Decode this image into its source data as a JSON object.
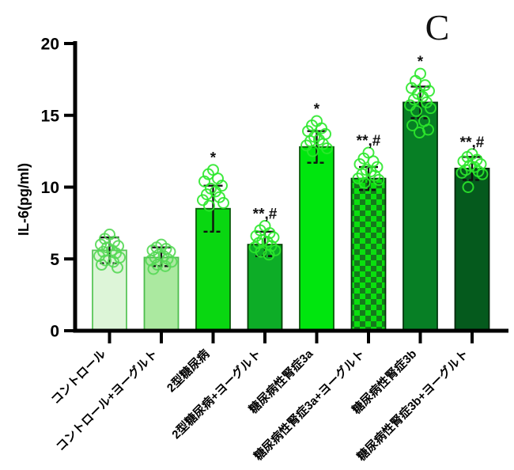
{
  "panel_label": "C",
  "chart_data": {
    "type": "bar",
    "title": "",
    "panel_label": "C",
    "xlabel": "",
    "ylabel": "IL-6(pg/ml)",
    "ylim": [
      0,
      20
    ],
    "yticks": [
      0,
      5,
      10,
      15,
      20
    ],
    "grid": false,
    "legend": "none",
    "categories": [
      "コントロール",
      "コントロール+ヨーグルト",
      "2型糖尿病",
      "2型糖尿病+ヨーグルト",
      "糖尿病性腎症3a",
      "糖尿病性腎症3a+ヨーグルト",
      "糖尿病性腎症3b",
      "糖尿病性腎症3b+ヨーグルト"
    ],
    "values": [
      5.6,
      5.1,
      8.5,
      6.0,
      12.8,
      10.6,
      15.9,
      11.3
    ],
    "error_low": [
      4.7,
      4.5,
      6.9,
      5.2,
      11.7,
      9.8,
      14.8,
      10.5
    ],
    "error_high": [
      6.5,
      5.8,
      10.1,
      6.9,
      13.9,
      11.4,
      17.0,
      12.1
    ],
    "significance": [
      "",
      "",
      "*",
      "**,#",
      "*",
      "**,#",
      "*",
      "**,#"
    ],
    "bar_styles": [
      {
        "fill": "#ddf5d8",
        "border": "#5ac65a",
        "point_color": "#55d855"
      },
      {
        "fill": "#abe9a0",
        "border": "#4dbd4d",
        "point_color": "#55d855"
      },
      {
        "fill": "#09d711",
        "border": "#0a5c0a",
        "point_color": "#2ce82c"
      },
      {
        "fill": "#0dad27",
        "border": "#064006",
        "point_color": "#2ce82c"
      },
      {
        "fill": "#00e60e",
        "border": "#0a5c0a",
        "point_color": "#2ce82c"
      },
      {
        "fill": "checker",
        "checker_light": "#0ae00e",
        "checker_dark": "#15791c",
        "border": "#05340c",
        "point_color": "#2ce82c"
      },
      {
        "fill": "#077f25",
        "border": "#03380f",
        "point_color": "#2ce82c"
      },
      {
        "fill": "#055a1d",
        "border": "#02280c",
        "point_color": "#2ce82c"
      }
    ],
    "points": [
      [
        6.7,
        6.4,
        6.2,
        6.0,
        5.9,
        5.8,
        5.6,
        5.5,
        5.4,
        5.2,
        5.1,
        4.9,
        4.8,
        4.6,
        4.4
      ],
      [
        6.0,
        5.8,
        5.7,
        5.6,
        5.5,
        5.3,
        5.2,
        5.1,
        5.0,
        4.9,
        4.8,
        4.6,
        4.5,
        4.3
      ],
      [
        11.2,
        10.9,
        10.6,
        10.4,
        10.1,
        9.9,
        9.7,
        9.5,
        9.3,
        9.1,
        8.9,
        8.7
      ],
      [
        7.3,
        7.0,
        6.8,
        6.6,
        6.5,
        6.3,
        6.2,
        6.1,
        5.9,
        5.8,
        5.6,
        5.5,
        5.3
      ],
      [
        14.6,
        14.3,
        14.1,
        13.9,
        13.7,
        13.5,
        13.3,
        13.2,
        13.0,
        12.9,
        12.7,
        12.5
      ],
      [
        12.4,
        12.0,
        11.8,
        11.6,
        11.4,
        11.2,
        11.1,
        10.9,
        10.8,
        10.6,
        10.5,
        10.3
      ],
      [
        17.9,
        17.4,
        17.1,
        16.9,
        16.7,
        16.5,
        16.3,
        16.1,
        15.9,
        15.7,
        15.5,
        15.3,
        14.6,
        14.3,
        14.0,
        13.8
      ],
      [
        12.3,
        12.1,
        11.9,
        11.8,
        11.6,
        11.5,
        11.4,
        11.2,
        11.1,
        11.0,
        10.9,
        10.0
      ]
    ],
    "axis_color": "#000000",
    "background_color": "#ffffff"
  }
}
